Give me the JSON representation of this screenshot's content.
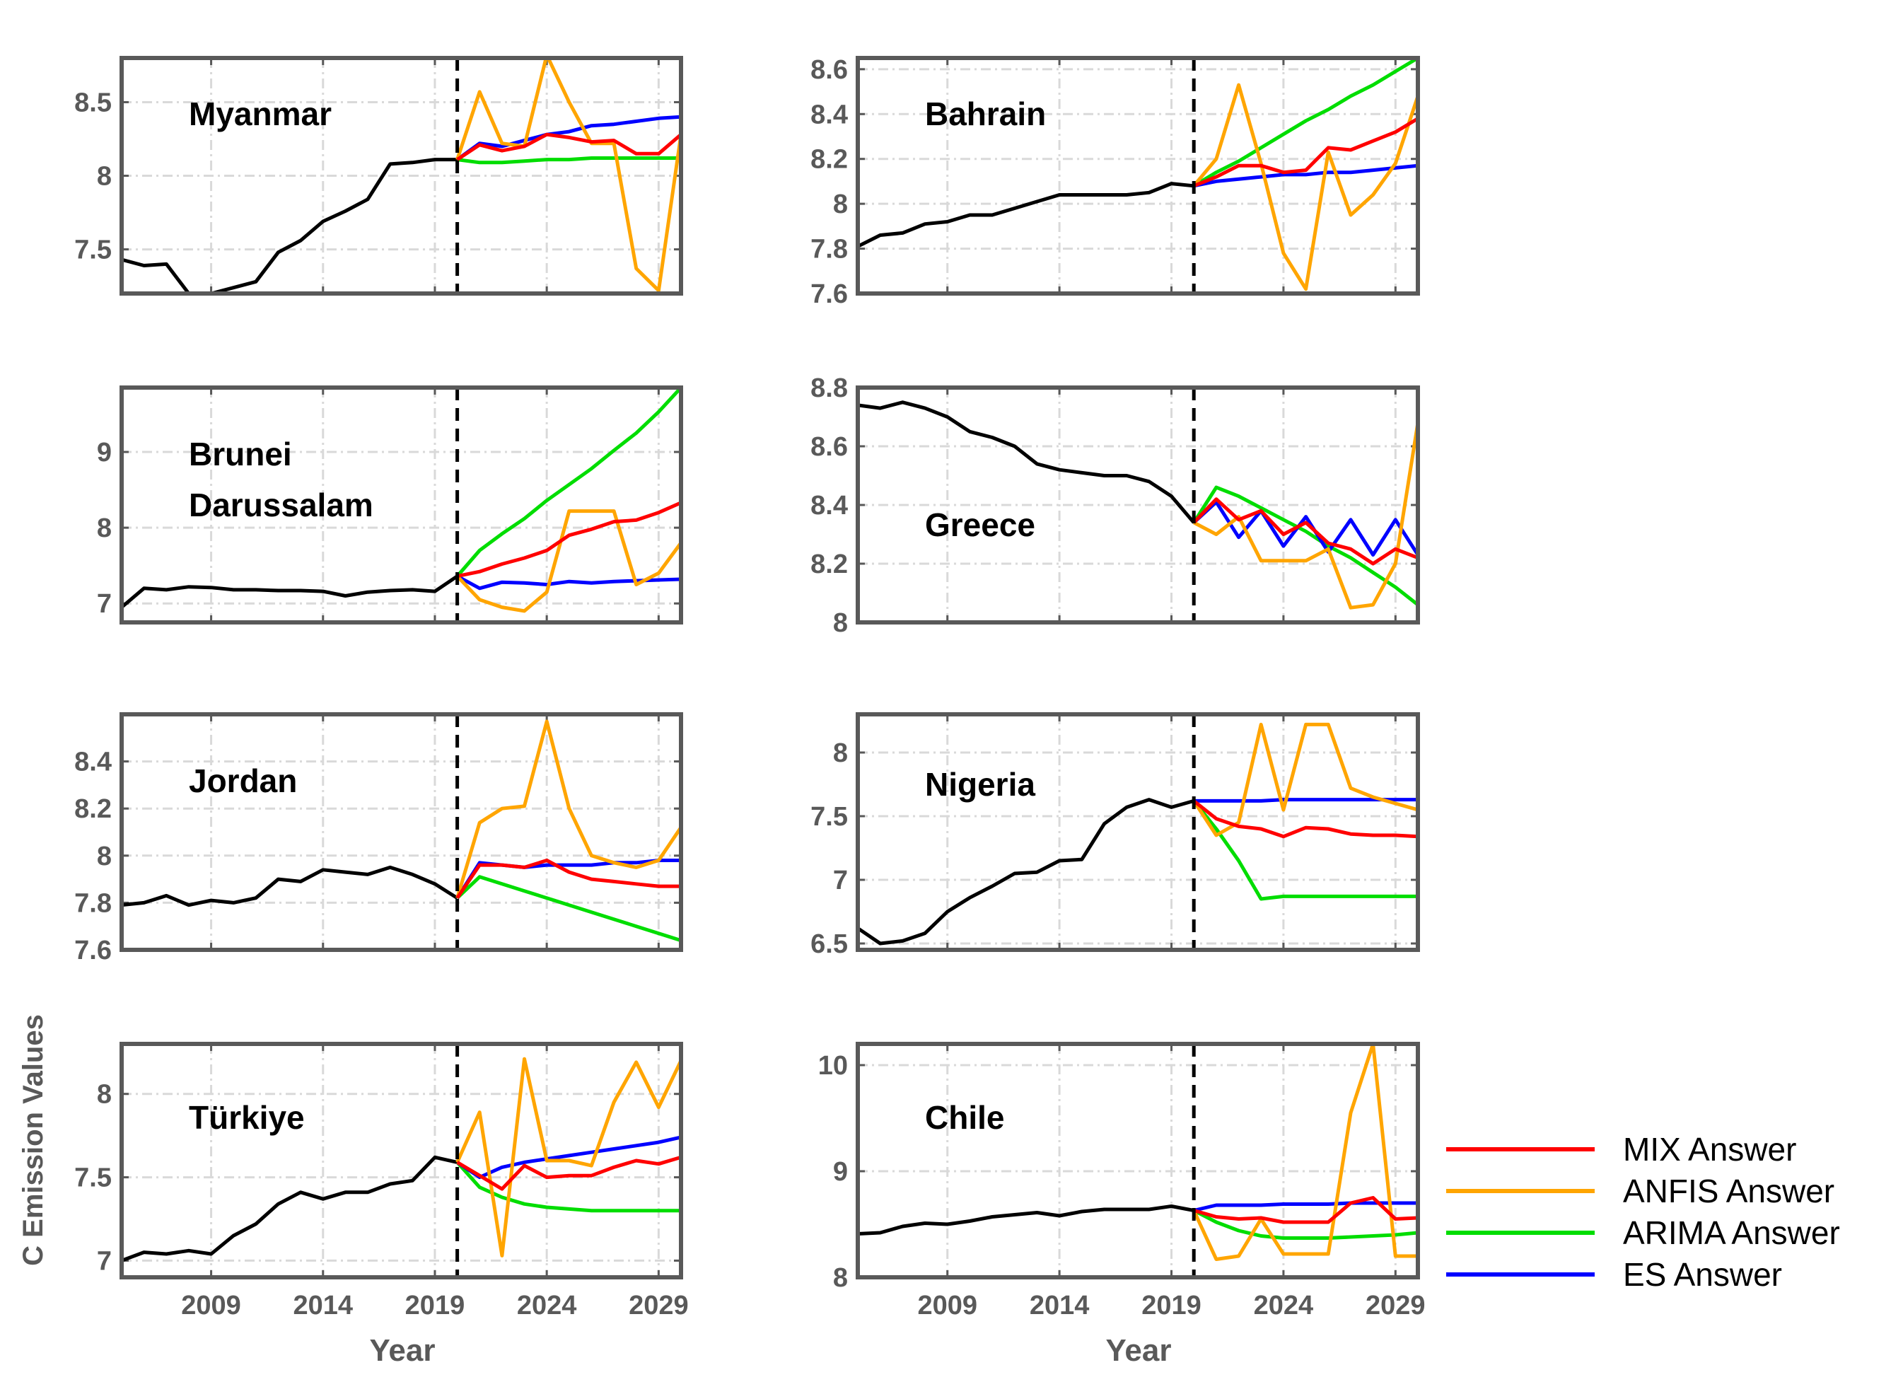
{
  "figure": {
    "ylabel": "C Emission Values",
    "xlabel": "Year",
    "forecast_start_year": 2020
  },
  "legend": [
    {
      "name": "MIX Answer",
      "color": "#ff0000"
    },
    {
      "name": "ANFIS Answer",
      "color": "#ffa500"
    },
    {
      "name": "ARIMA Answer",
      "color": "#00dd00"
    },
    {
      "name": "ES Answer",
      "color": "#0000ff"
    }
  ],
  "chart_data": [
    {
      "type": "line",
      "title": "Myanmar",
      "title_lines": [
        "Myanmar"
      ],
      "xlim": [
        2005,
        2030
      ],
      "ylim": [
        7.2,
        8.8
      ],
      "yticks": [
        7.5,
        8,
        8.5
      ],
      "ytick_labels": [
        "7.5",
        "8",
        "8.5"
      ],
      "xticks": [
        2009,
        2014,
        2019,
        2024,
        2029
      ],
      "xtick_labels": [
        "2009",
        "2014",
        "2019",
        "2024",
        "2029"
      ],
      "show_xticklabels": false,
      "history": {
        "x": [
          2005,
          2006,
          2007,
          2008,
          2009,
          2010,
          2011,
          2012,
          2013,
          2014,
          2015,
          2016,
          2017,
          2018,
          2019,
          2020
        ],
        "y": [
          7.43,
          7.39,
          7.4,
          7.2,
          7.2,
          7.24,
          7.28,
          7.48,
          7.56,
          7.69,
          7.76,
          7.84,
          8.08,
          8.09,
          8.11,
          8.11
        ]
      },
      "forecasts": {
        "x": [
          2020,
          2021,
          2022,
          2023,
          2024,
          2025,
          2026,
          2027,
          2028,
          2029,
          2030
        ],
        "MIX": [
          8.11,
          8.21,
          8.17,
          8.2,
          8.28,
          8.26,
          8.23,
          8.24,
          8.15,
          8.15,
          8.28
        ],
        "ANFIS": [
          8.11,
          8.57,
          8.22,
          8.2,
          8.82,
          8.5,
          8.22,
          8.22,
          7.37,
          7.22,
          8.28
        ],
        "ARIMA": [
          8.11,
          8.09,
          8.09,
          8.1,
          8.11,
          8.11,
          8.12,
          8.12,
          8.12,
          8.12,
          8.12
        ],
        "ES": [
          8.11,
          8.22,
          8.2,
          8.24,
          8.28,
          8.3,
          8.34,
          8.35,
          8.37,
          8.39,
          8.4
        ]
      }
    },
    {
      "type": "line",
      "title": "Bahrain",
      "title_lines": [
        "Bahrain"
      ],
      "xlim": [
        2005,
        2030
      ],
      "ylim": [
        7.6,
        8.65
      ],
      "yticks": [
        7.6,
        7.8,
        8,
        8.2,
        8.4,
        8.6
      ],
      "ytick_labels": [
        "7.6",
        "7.8",
        "8",
        "8.2",
        "8.4",
        "8.6"
      ],
      "xticks": [
        2009,
        2014,
        2019,
        2024,
        2029
      ],
      "xtick_labels": [
        "2009",
        "2014",
        "2019",
        "2024",
        "2029"
      ],
      "show_xticklabels": false,
      "history": {
        "x": [
          2005,
          2006,
          2007,
          2008,
          2009,
          2010,
          2011,
          2012,
          2013,
          2014,
          2015,
          2016,
          2017,
          2018,
          2019,
          2020
        ],
        "y": [
          7.81,
          7.86,
          7.87,
          7.91,
          7.92,
          7.95,
          7.95,
          7.98,
          8.01,
          8.04,
          8.04,
          8.04,
          8.04,
          8.05,
          8.09,
          8.08
        ]
      },
      "forecasts": {
        "x": [
          2020,
          2021,
          2022,
          2023,
          2024,
          2025,
          2026,
          2027,
          2028,
          2029,
          2030
        ],
        "MIX": [
          8.08,
          8.12,
          8.17,
          8.17,
          8.14,
          8.15,
          8.25,
          8.24,
          8.28,
          8.32,
          8.38
        ],
        "ANFIS": [
          8.08,
          8.2,
          8.53,
          8.18,
          7.78,
          7.62,
          8.23,
          7.95,
          8.04,
          8.18,
          8.48
        ],
        "ARIMA": [
          8.08,
          8.14,
          8.19,
          8.25,
          8.31,
          8.37,
          8.42,
          8.48,
          8.53,
          8.59,
          8.65
        ],
        "ES": [
          8.08,
          8.1,
          8.11,
          8.12,
          8.13,
          8.13,
          8.14,
          8.14,
          8.15,
          8.16,
          8.17
        ]
      }
    },
    {
      "type": "line",
      "title": "Brunei Darussalam",
      "title_lines": [
        "Brunei",
        "Darussalam"
      ],
      "xlim": [
        2005,
        2030
      ],
      "ylim": [
        6.75,
        9.85
      ],
      "yticks": [
        7,
        8,
        9
      ],
      "ytick_labels": [
        "7",
        "8",
        "9"
      ],
      "xticks": [
        2009,
        2014,
        2019,
        2024,
        2029
      ],
      "xtick_labels": [
        "2009",
        "2014",
        "2019",
        "2024",
        "2029"
      ],
      "show_xticklabels": false,
      "history": {
        "x": [
          2005,
          2006,
          2007,
          2008,
          2009,
          2010,
          2011,
          2012,
          2013,
          2014,
          2015,
          2016,
          2017,
          2018,
          2019,
          2020
        ],
        "y": [
          6.95,
          7.2,
          7.18,
          7.22,
          7.21,
          7.18,
          7.18,
          7.17,
          7.17,
          7.16,
          7.1,
          7.15,
          7.17,
          7.18,
          7.16,
          7.36
        ]
      },
      "forecasts": {
        "x": [
          2020,
          2021,
          2022,
          2023,
          2024,
          2025,
          2026,
          2027,
          2028,
          2029,
          2030
        ],
        "MIX": [
          7.36,
          7.42,
          7.52,
          7.6,
          7.7,
          7.9,
          7.98,
          8.08,
          8.1,
          8.2,
          8.33
        ],
        "ANFIS": [
          7.36,
          7.05,
          6.95,
          6.9,
          7.15,
          8.22,
          8.22,
          8.22,
          7.25,
          7.4,
          7.8
        ],
        "ARIMA": [
          7.36,
          7.7,
          7.92,
          8.12,
          8.36,
          8.57,
          8.78,
          9.02,
          9.25,
          9.53,
          9.85
        ],
        "ES": [
          7.36,
          7.2,
          7.28,
          7.27,
          7.25,
          7.29,
          7.27,
          7.29,
          7.3,
          7.31,
          7.32
        ]
      }
    },
    {
      "type": "line",
      "title": "Greece",
      "title_lines": [
        "Greece"
      ],
      "xlim": [
        2005,
        2030
      ],
      "ylim": [
        8.0,
        8.8
      ],
      "yticks": [
        8,
        8.2,
        8.4,
        8.6,
        8.8
      ],
      "ytick_labels": [
        "8",
        "8.2",
        "8.4",
        "8.6",
        "8.8"
      ],
      "xticks": [
        2009,
        2014,
        2019,
        2024,
        2029
      ],
      "xtick_labels": [
        "2009",
        "2014",
        "2019",
        "2024",
        "2029"
      ],
      "show_xticklabels": false,
      "history": {
        "x": [
          2005,
          2006,
          2007,
          2008,
          2009,
          2010,
          2011,
          2012,
          2013,
          2014,
          2015,
          2016,
          2017,
          2018,
          2019,
          2020
        ],
        "y": [
          8.74,
          8.73,
          8.75,
          8.73,
          8.7,
          8.65,
          8.63,
          8.6,
          8.54,
          8.52,
          8.51,
          8.5,
          8.5,
          8.48,
          8.43,
          8.34
        ]
      },
      "forecasts": {
        "x": [
          2020,
          2021,
          2022,
          2023,
          2024,
          2025,
          2026,
          2027,
          2028,
          2029,
          2030
        ],
        "MIX": [
          8.34,
          8.42,
          8.35,
          8.38,
          8.3,
          8.34,
          8.27,
          8.25,
          8.2,
          8.25,
          8.22
        ],
        "ANFIS": [
          8.34,
          8.3,
          8.36,
          8.21,
          8.21,
          8.21,
          8.25,
          8.05,
          8.06,
          8.2,
          8.68
        ],
        "ARIMA": [
          8.34,
          8.46,
          8.43,
          8.39,
          8.35,
          8.31,
          8.26,
          8.22,
          8.17,
          8.12,
          8.06
        ],
        "ES": [
          8.34,
          8.41,
          8.29,
          8.38,
          8.26,
          8.36,
          8.24,
          8.35,
          8.23,
          8.35,
          8.23
        ]
      }
    },
    {
      "type": "line",
      "title": "Jordan",
      "title_lines": [
        "Jordan"
      ],
      "xlim": [
        2005,
        2030
      ],
      "ylim": [
        7.6,
        8.6
      ],
      "yticks": [
        7.6,
        7.8,
        8,
        8.2,
        8.4
      ],
      "ytick_labels": [
        "7.6",
        "7.8",
        "8",
        "8.2",
        "8.4"
      ],
      "xticks": [
        2009,
        2014,
        2019,
        2024,
        2029
      ],
      "xtick_labels": [
        "2009",
        "2014",
        "2019",
        "2024",
        "2029"
      ],
      "show_xticklabels": false,
      "history": {
        "x": [
          2005,
          2006,
          2007,
          2008,
          2009,
          2010,
          2011,
          2012,
          2013,
          2014,
          2015,
          2016,
          2017,
          2018,
          2019,
          2020
        ],
        "y": [
          7.79,
          7.8,
          7.83,
          7.79,
          7.81,
          7.8,
          7.82,
          7.9,
          7.89,
          7.94,
          7.93,
          7.92,
          7.95,
          7.92,
          7.88,
          7.82
        ]
      },
      "forecasts": {
        "x": [
          2020,
          2021,
          2022,
          2023,
          2024,
          2025,
          2026,
          2027,
          2028,
          2029,
          2030
        ],
        "MIX": [
          7.82,
          7.96,
          7.96,
          7.95,
          7.98,
          7.93,
          7.9,
          7.89,
          7.88,
          7.87,
          7.87
        ],
        "ANFIS": [
          7.82,
          8.14,
          8.2,
          8.21,
          8.57,
          8.2,
          8.0,
          7.97,
          7.95,
          7.98,
          8.12
        ],
        "ARIMA": [
          7.82,
          7.91,
          7.88,
          7.85,
          7.82,
          7.79,
          7.76,
          7.73,
          7.7,
          7.67,
          7.64
        ],
        "ES": [
          7.82,
          7.97,
          7.96,
          7.95,
          7.96,
          7.96,
          7.96,
          7.97,
          7.97,
          7.98,
          7.98
        ]
      }
    },
    {
      "type": "line",
      "title": "Nigeria",
      "title_lines": [
        "Nigeria"
      ],
      "xlim": [
        2005,
        2030
      ],
      "ylim": [
        6.45,
        8.3
      ],
      "yticks": [
        6.5,
        7,
        7.5,
        8
      ],
      "ytick_labels": [
        "6.5",
        "7",
        "7.5",
        "8"
      ],
      "xticks": [
        2009,
        2014,
        2019,
        2024,
        2029
      ],
      "xtick_labels": [
        "2009",
        "2014",
        "2019",
        "2024",
        "2029"
      ],
      "show_xticklabels": false,
      "history": {
        "x": [
          2005,
          2006,
          2007,
          2008,
          2009,
          2010,
          2011,
          2012,
          2013,
          2014,
          2015,
          2016,
          2017,
          2018,
          2019,
          2020
        ],
        "y": [
          6.62,
          6.5,
          6.52,
          6.58,
          6.75,
          6.86,
          6.95,
          7.05,
          7.06,
          7.15,
          7.16,
          7.44,
          7.57,
          7.63,
          7.57,
          7.62
        ]
      },
      "forecasts": {
        "x": [
          2020,
          2021,
          2022,
          2023,
          2024,
          2025,
          2026,
          2027,
          2028,
          2029,
          2030
        ],
        "MIX": [
          7.62,
          7.48,
          7.42,
          7.4,
          7.34,
          7.41,
          7.4,
          7.36,
          7.35,
          7.35,
          7.34
        ],
        "ANFIS": [
          7.62,
          7.35,
          7.45,
          8.22,
          7.55,
          8.22,
          8.22,
          7.72,
          7.65,
          7.6,
          7.55
        ],
        "ARIMA": [
          7.62,
          7.4,
          7.15,
          6.85,
          6.87,
          6.87,
          6.87,
          6.87,
          6.87,
          6.87,
          6.87
        ],
        "ES": [
          7.62,
          7.62,
          7.62,
          7.62,
          7.63,
          7.63,
          7.63,
          7.63,
          7.63,
          7.63,
          7.63
        ]
      }
    },
    {
      "type": "line",
      "title": "Türkiye",
      "title_lines": [
        "Türkiye"
      ],
      "xlim": [
        2005,
        2030
      ],
      "ylim": [
        6.9,
        8.3
      ],
      "yticks": [
        7,
        7.5,
        8
      ],
      "ytick_labels": [
        "7",
        "7.5",
        "8"
      ],
      "xticks": [
        2009,
        2014,
        2019,
        2024,
        2029
      ],
      "xtick_labels": [
        "2009",
        "2014",
        "2019",
        "2024",
        "2029"
      ],
      "show_xticklabels": true,
      "history": {
        "x": [
          2005,
          2006,
          2007,
          2008,
          2009,
          2010,
          2011,
          2012,
          2013,
          2014,
          2015,
          2016,
          2017,
          2018,
          2019,
          2020
        ],
        "y": [
          7.0,
          7.05,
          7.04,
          7.06,
          7.04,
          7.15,
          7.22,
          7.34,
          7.41,
          7.37,
          7.41,
          7.41,
          7.46,
          7.48,
          7.62,
          7.59
        ]
      },
      "forecasts": {
        "x": [
          2020,
          2021,
          2022,
          2023,
          2024,
          2025,
          2026,
          2027,
          2028,
          2029,
          2030
        ],
        "MIX": [
          7.59,
          7.51,
          7.43,
          7.57,
          7.5,
          7.51,
          7.51,
          7.56,
          7.6,
          7.58,
          7.62
        ],
        "ANFIS": [
          7.59,
          7.89,
          7.03,
          8.21,
          7.6,
          7.6,
          7.57,
          7.95,
          8.19,
          7.92,
          8.2
        ],
        "ARIMA": [
          7.59,
          7.44,
          7.38,
          7.34,
          7.32,
          7.31,
          7.3,
          7.3,
          7.3,
          7.3,
          7.3
        ],
        "ES": [
          7.59,
          7.5,
          7.56,
          7.59,
          7.61,
          7.63,
          7.65,
          7.67,
          7.69,
          7.71,
          7.74
        ]
      }
    },
    {
      "type": "line",
      "title": "Chile",
      "title_lines": [
        "Chile"
      ],
      "xlim": [
        2005,
        2030
      ],
      "ylim": [
        8.0,
        10.2
      ],
      "yticks": [
        8,
        9,
        10
      ],
      "ytick_labels": [
        "8",
        "9",
        "10"
      ],
      "xticks": [
        2009,
        2014,
        2019,
        2024,
        2029
      ],
      "xtick_labels": [
        "2009",
        "2014",
        "2019",
        "2024",
        "2029"
      ],
      "show_xticklabels": true,
      "history": {
        "x": [
          2005,
          2006,
          2007,
          2008,
          2009,
          2010,
          2011,
          2012,
          2013,
          2014,
          2015,
          2016,
          2017,
          2018,
          2019,
          2020
        ],
        "y": [
          8.41,
          8.42,
          8.48,
          8.51,
          8.5,
          8.53,
          8.57,
          8.59,
          8.61,
          8.58,
          8.62,
          8.64,
          8.64,
          8.64,
          8.67,
          8.63
        ]
      },
      "forecasts": {
        "x": [
          2020,
          2021,
          2022,
          2023,
          2024,
          2025,
          2026,
          2027,
          2028,
          2029,
          2030
        ],
        "MIX": [
          8.63,
          8.57,
          8.55,
          8.56,
          8.52,
          8.52,
          8.52,
          8.7,
          8.75,
          8.55,
          8.56
        ],
        "ANFIS": [
          8.63,
          8.17,
          8.2,
          8.55,
          8.22,
          8.22,
          8.22,
          9.55,
          10.2,
          8.2,
          8.2
        ],
        "ARIMA": [
          8.63,
          8.52,
          8.44,
          8.39,
          8.37,
          8.37,
          8.37,
          8.38,
          8.39,
          8.4,
          8.42
        ],
        "ES": [
          8.63,
          8.68,
          8.68,
          8.68,
          8.69,
          8.69,
          8.69,
          8.7,
          8.7,
          8.7,
          8.7
        ]
      }
    }
  ]
}
